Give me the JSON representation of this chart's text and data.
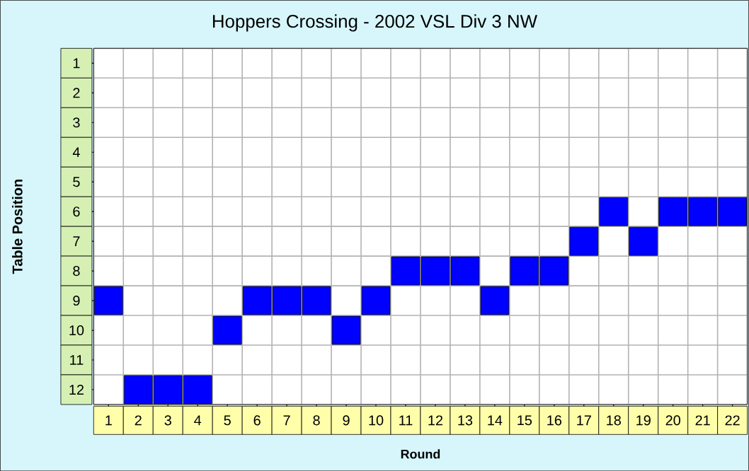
{
  "chart_data": {
    "type": "scatter",
    "title": "Hoppers Crossing - 2002 VSL Div 3 NW",
    "xlabel": "Round",
    "ylabel": "Table Position",
    "categories": [
      "1",
      "2",
      "3",
      "4",
      "5",
      "6",
      "7",
      "8",
      "9",
      "10",
      "11",
      "12",
      "13",
      "14",
      "15",
      "16",
      "17",
      "18",
      "19",
      "20",
      "21",
      "22"
    ],
    "values": [
      9,
      12,
      12,
      12,
      10,
      9,
      9,
      9,
      10,
      9,
      8,
      8,
      8,
      9,
      8,
      8,
      7,
      6,
      7,
      6,
      6,
      6
    ],
    "color": "#0000ff",
    "marker": "square",
    "ylim": [
      12.5,
      0.5
    ],
    "yticks": [
      1,
      2,
      3,
      4,
      5,
      6,
      7,
      8,
      9,
      10,
      11,
      12
    ],
    "grid": true
  }
}
